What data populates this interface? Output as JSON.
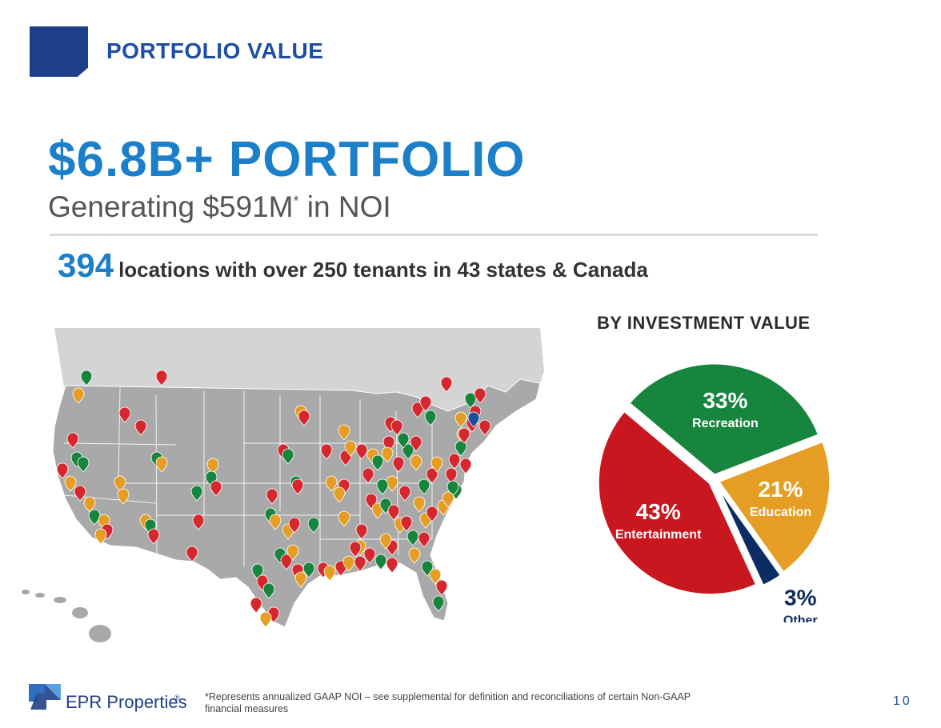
{
  "header": {
    "section_title": "PORTFOLIO VALUE"
  },
  "headline": {
    "title": "$6.8B+ PORTFOLIO",
    "subtitle_prefix": "Generating $591M",
    "subtitle_mark": "*",
    "subtitle_suffix": " in NOI"
  },
  "stats": {
    "location_count": "394",
    "description": "locations with over 250 tenants in 43 states & Canada"
  },
  "map": {
    "pin_colors": {
      "entertainment": "#d6262e",
      "recreation": "#17853e",
      "education": "#e59d23",
      "other": "#1a4f9c"
    }
  },
  "chart_data": {
    "type": "pie",
    "title": "BY INVESTMENT VALUE",
    "slices": [
      {
        "label": "Recreation",
        "value": 33,
        "display": "33%",
        "color": "#17853e"
      },
      {
        "label": "Education",
        "value": 21,
        "display": "21%",
        "color": "#e59d23"
      },
      {
        "label": "Other",
        "value": 3,
        "display": "3%",
        "color": "#0c2d63"
      },
      {
        "label": "Entertainment",
        "value": 43,
        "display": "43%",
        "color": "#c8171f"
      }
    ]
  },
  "footer": {
    "logo_text": "EPR Properties",
    "logo_mark": "®",
    "footnote": "*Represents annualized GAAP NOI – see supplemental for definition and reconciliations of certain Non-GAAP financial measures",
    "page_number": "10"
  }
}
